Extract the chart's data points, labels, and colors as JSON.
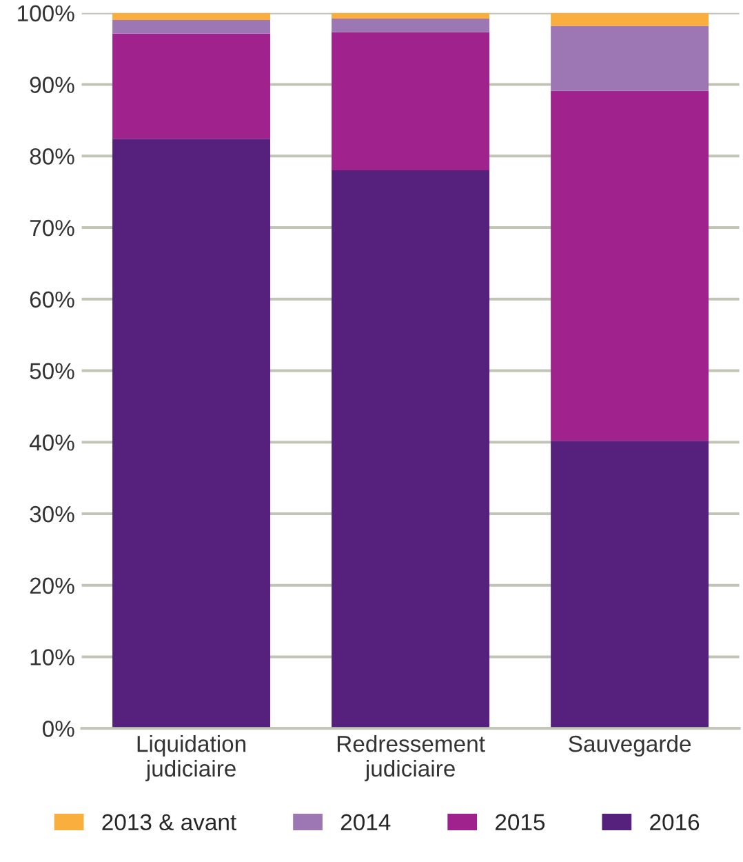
{
  "chart_data": {
    "type": "bar",
    "stacked": true,
    "categories": [
      "Liquidation\njudiciaire",
      "Redressement\njudiciaire",
      "Sauvegarde"
    ],
    "series": [
      {
        "name": "2016",
        "color": "#56217c",
        "values": [
          82.4,
          78.0,
          40.2
        ]
      },
      {
        "name": "2015",
        "color": "#a0228c",
        "values": [
          14.7,
          19.3,
          48.9
        ]
      },
      {
        "name": "2014",
        "color": "#9d77b3",
        "values": [
          1.9,
          1.9,
          9.1
        ]
      },
      {
        "name": "2013 & avant",
        "color": "#f9ae3d",
        "values": [
          1.0,
          0.8,
          1.8
        ]
      }
    ],
    "ylim": [
      0,
      100
    ],
    "yticks": [
      {
        "value": 0,
        "label": "0%"
      },
      {
        "value": 10,
        "label": "10%"
      },
      {
        "value": 20,
        "label": "20%"
      },
      {
        "value": 30,
        "label": "30%"
      },
      {
        "value": 40,
        "label": "40%"
      },
      {
        "value": 50,
        "label": "50%"
      },
      {
        "value": 60,
        "label": "60%"
      },
      {
        "value": 70,
        "label": "70%"
      },
      {
        "value": 80,
        "label": "80%"
      },
      {
        "value": 90,
        "label": "90%"
      },
      {
        "value": 100,
        "label": "100%"
      }
    ],
    "grid": "y",
    "legend": "bottom"
  }
}
